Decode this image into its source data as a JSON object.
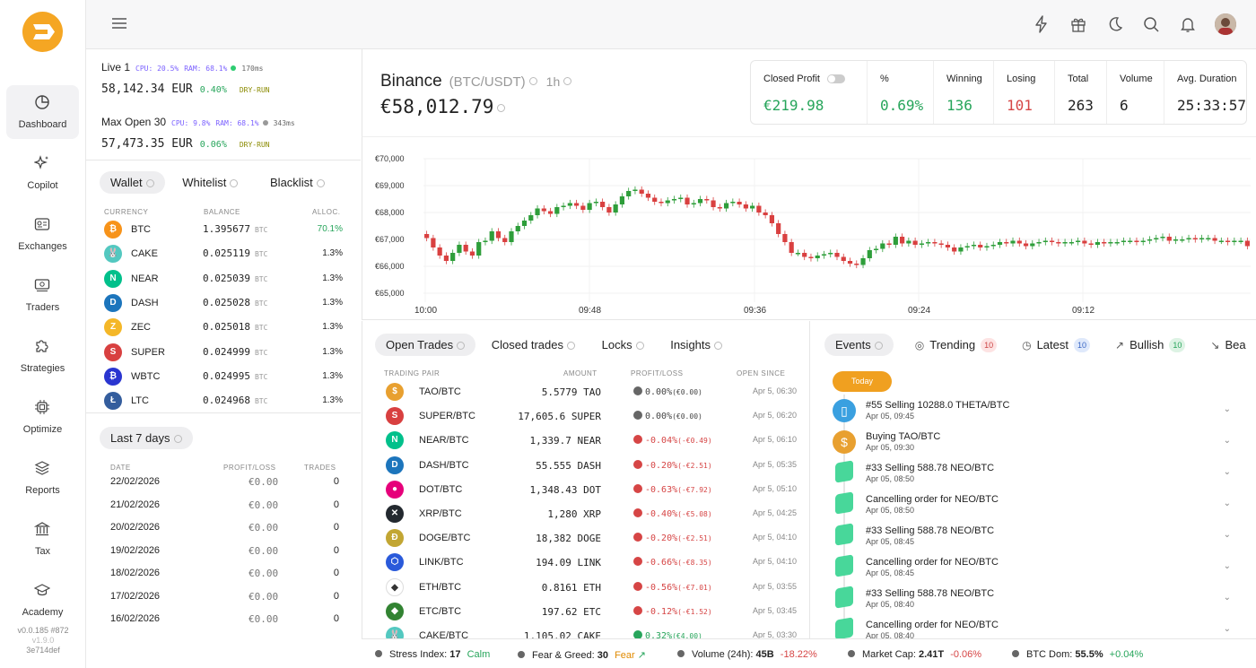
{
  "nav": {
    "items": [
      {
        "label": "Dashboard",
        "icon": "pie-chart-icon"
      },
      {
        "label": "Copilot",
        "icon": "sparkles-icon"
      },
      {
        "label": "Exchanges",
        "icon": "exchange-card-icon"
      },
      {
        "label": "Traders",
        "icon": "cash-icon"
      },
      {
        "label": "Strategies",
        "icon": "puzzle-icon"
      },
      {
        "label": "Optimize",
        "icon": "chip-icon"
      },
      {
        "label": "Reports",
        "icon": "layers-icon"
      },
      {
        "label": "Tax",
        "icon": "bank-icon"
      },
      {
        "label": "Academy",
        "icon": "graduation-cap-icon"
      }
    ],
    "version": "v0.0.185 #872",
    "version2": "v1.9.0",
    "hash": "3e714def"
  },
  "bots": [
    {
      "name": "Live 1",
      "cpu": "CPU: 20.5%",
      "ram": "RAM: 68.1%",
      "latency": "170ms",
      "value": "58,142.34 EUR",
      "pct": "0.40%",
      "mode": "DRY-RUN",
      "dot": "#2ecc71"
    },
    {
      "name": "Max Open 30",
      "cpu": "CPU: 9.8%",
      "ram": "RAM: 68.1%",
      "latency": "343ms",
      "value": "57,473.35 EUR",
      "pct": "0.06%",
      "mode": "DRY-RUN",
      "dot": "#999999"
    }
  ],
  "wallet": {
    "tabs": [
      "Wallet",
      "Whitelist",
      "Blacklist"
    ],
    "headers": {
      "currency": "CURRENCY",
      "balance": "BALANCE",
      "alloc": "ALLOC."
    },
    "rows": [
      {
        "sym": "BTC",
        "bal": "1.395677",
        "unit": "BTC",
        "alloc": "70.1%",
        "color": "#f7931a",
        "glyph": "₿"
      },
      {
        "sym": "CAKE",
        "bal": "0.025119",
        "unit": "BTC",
        "alloc": "1.3%",
        "color": "#53c8c0",
        "glyph": "🐰"
      },
      {
        "sym": "NEAR",
        "bal": "0.025039",
        "unit": "BTC",
        "alloc": "1.3%",
        "color": "#00c08b",
        "glyph": "N"
      },
      {
        "sym": "DASH",
        "bal": "0.025028",
        "unit": "BTC",
        "alloc": "1.3%",
        "color": "#1c75bc",
        "glyph": "D"
      },
      {
        "sym": "ZEC",
        "bal": "0.025018",
        "unit": "BTC",
        "alloc": "1.3%",
        "color": "#f4b728",
        "glyph": "Z"
      },
      {
        "sym": "SUPER",
        "bal": "0.024999",
        "unit": "BTC",
        "alloc": "1.3%",
        "color": "#d84040",
        "glyph": "S"
      },
      {
        "sym": "WBTC",
        "bal": "0.024995",
        "unit": "BTC",
        "alloc": "1.3%",
        "color": "#2a35d0",
        "glyph": "₿"
      },
      {
        "sym": "LTC",
        "bal": "0.024968",
        "unit": "BTC",
        "alloc": "1.3%",
        "color": "#345d9d",
        "glyph": "Ł"
      }
    ]
  },
  "days": {
    "title": "Last 7 days",
    "headers": {
      "date": "DATE",
      "pl": "PROFIT/LOSS",
      "trades": "TRADES"
    },
    "rows": [
      {
        "date": "22/02/2026",
        "pl": "€0.00",
        "trades": "0"
      },
      {
        "date": "21/02/2026",
        "pl": "€0.00",
        "trades": "0"
      },
      {
        "date": "20/02/2026",
        "pl": "€0.00",
        "trades": "0"
      },
      {
        "date": "19/02/2026",
        "pl": "€0.00",
        "trades": "0"
      },
      {
        "date": "18/02/2026",
        "pl": "€0.00",
        "trades": "0"
      },
      {
        "date": "17/02/2026",
        "pl": "€0.00",
        "trades": "0"
      },
      {
        "date": "16/02/2026",
        "pl": "€0.00",
        "trades": "0"
      }
    ]
  },
  "header": {
    "exchange": "Binance",
    "pair": "(BTC/USDT)",
    "timeframe": "1h",
    "price": "€58,012.79"
  },
  "stats": [
    {
      "label": "Closed Profit",
      "value": "€219.98",
      "color": "#27a55b"
    },
    {
      "label": "%",
      "value": "0.69%",
      "color": "#27a55b"
    },
    {
      "label": "Winning",
      "value": "136",
      "color": "#27a55b"
    },
    {
      "label": "Losing",
      "value": "101",
      "color": "#d64545"
    },
    {
      "label": "Total",
      "value": "263",
      "color": "#222222"
    },
    {
      "label": "Volume",
      "value": "6",
      "color": "#222222"
    },
    {
      "label": "Avg. Duration",
      "value": "25:33:57",
      "color": "#222222"
    }
  ],
  "chart_data": {
    "type": "candlestick",
    "y_ticks": [
      "€70,000",
      "€69,000",
      "€68,000",
      "€67,000",
      "€66,000",
      "€65,000"
    ],
    "ylim": [
      65000,
      70000
    ],
    "x_ticks": [
      "10:00",
      "09:48",
      "09:36",
      "09:24",
      "09:12"
    ],
    "up_color": "#2e9e3a",
    "down_color": "#d94040",
    "close": [
      67050,
      66700,
      66400,
      66200,
      66500,
      66800,
      66550,
      66400,
      66900,
      66950,
      67300,
      67050,
      66900,
      67300,
      67500,
      67700,
      67900,
      68150,
      68050,
      67950,
      68200,
      68250,
      68350,
      68250,
      68100,
      68350,
      68400,
      68200,
      68000,
      68300,
      68600,
      68800,
      68850,
      68700,
      68550,
      68400,
      68350,
      68450,
      68500,
      68550,
      68300,
      68350,
      68500,
      68450,
      68200,
      68150,
      68350,
      68400,
      68300,
      68150,
      68250,
      68000,
      67900,
      67600,
      67200,
      66900,
      66500,
      66500,
      66350,
      66300,
      66400,
      66450,
      66500,
      66350,
      66200,
      66100,
      66050,
      66300,
      66600,
      66650,
      66850,
      66800,
      67100,
      66850,
      66950,
      66800,
      66850,
      66900,
      66850,
      66800,
      66700,
      66550,
      66700,
      66750,
      66800,
      66700,
      66750,
      66800,
      66900,
      66850,
      66950,
      66850,
      66750,
      66850,
      66900,
      66950,
      66900,
      66850,
      66900,
      66900,
      66950,
      66850,
      66800,
      66900,
      66850,
      66900,
      66900,
      66950,
      66950,
      66900,
      66950,
      67000,
      67050,
      67100,
      66950,
      67000,
      67000,
      67050,
      67000,
      67050,
      67050,
      66950,
      66950,
      66900,
      66950,
      66950,
      66750
    ]
  },
  "trades": {
    "tabs": [
      "Open Trades",
      "Closed trades",
      "Locks",
      "Insights"
    ],
    "headers": {
      "pair": "TRADING PAIR",
      "amount": "AMOUNT",
      "pl": "PROFIT/LOSS",
      "since": "OPEN SINCE"
    },
    "rows": [
      {
        "pair": "TAO/BTC",
        "amt": "5.5779 TAO",
        "pl": "0.00%",
        "plsub": "(€0.00)",
        "since": "Apr 5, 06:30",
        "color": "#e8a030",
        "glyph": "$",
        "neg": false
      },
      {
        "pair": "SUPER/BTC",
        "amt": "17,605.6 SUPER",
        "pl": "0.00%",
        "plsub": "(€0.00)",
        "since": "Apr 5, 06:20",
        "color": "#d84040",
        "glyph": "S",
        "neg": false
      },
      {
        "pair": "NEAR/BTC",
        "amt": "1,339.7 NEAR",
        "pl": "-0.04%",
        "plsub": "(-€0.49)",
        "since": "Apr 5, 06:10",
        "color": "#00c08b",
        "glyph": "N",
        "neg": true
      },
      {
        "pair": "DASH/BTC",
        "amt": "55.555 DASH",
        "pl": "-0.20%",
        "plsub": "(-€2.51)",
        "since": "Apr 5, 05:35",
        "color": "#1c75bc",
        "glyph": "D",
        "neg": true
      },
      {
        "pair": "DOT/BTC",
        "amt": "1,348.43 DOT",
        "pl": "-0.63%",
        "plsub": "(-€7.92)",
        "since": "Apr 5, 05:10",
        "color": "#e6007a",
        "glyph": "●",
        "neg": true
      },
      {
        "pair": "XRP/BTC",
        "amt": "1,280 XRP",
        "pl": "-0.40%",
        "plsub": "(-€5.08)",
        "since": "Apr 5, 04:25",
        "color": "#23292f",
        "glyph": "✕",
        "neg": true
      },
      {
        "pair": "DOGE/BTC",
        "amt": "18,382 DOGE",
        "pl": "-0.20%",
        "plsub": "(-€2.51)",
        "since": "Apr 5, 04:10",
        "color": "#c2a633",
        "glyph": "Ð",
        "neg": true
      },
      {
        "pair": "LINK/BTC",
        "amt": "194.09 LINK",
        "pl": "-0.66%",
        "plsub": "(-€8.35)",
        "since": "Apr 5, 04:10",
        "color": "#2a5ada",
        "glyph": "⬡",
        "neg": true
      },
      {
        "pair": "ETH/BTC",
        "amt": "0.8161 ETH",
        "pl": "-0.56%",
        "plsub": "(-€7.01)",
        "since": "Apr 5, 03:55",
        "color": "#ffffff",
        "glyph": "◆",
        "neg": true
      },
      {
        "pair": "ETC/BTC",
        "amt": "197.62 ETC",
        "pl": "-0.12%",
        "plsub": "(-€1.52)",
        "since": "Apr 5, 03:45",
        "color": "#328332",
        "glyph": "◆",
        "neg": true
      },
      {
        "pair": "CAKE/BTC",
        "amt": "1,105.02 CAKE",
        "pl": "0.32%",
        "plsub": "(€4.00)",
        "since": "Apr 5, 03:30",
        "color": "#53c8c0",
        "glyph": "🐰",
        "neg": false
      }
    ]
  },
  "events": {
    "tabs": [
      {
        "label": "Events",
        "badge": ""
      },
      {
        "label": "Trending",
        "badge": "10"
      },
      {
        "label": "Latest",
        "badge": "10"
      },
      {
        "label": "Bullish",
        "badge": "10"
      },
      {
        "label": "Bea",
        "badge": ""
      }
    ],
    "today": "Today",
    "rows": [
      {
        "title": "#55 Selling 10288.0 THETA/BTC",
        "date": "Apr 05, 09:45",
        "color": "#3aa0e0"
      },
      {
        "title": "Buying TAO/BTC",
        "date": "Apr 05, 09:30",
        "color": "#e8a030"
      },
      {
        "title": "#33 Selling 588.78 NEO/BTC",
        "date": "Apr 05, 08:50",
        "color": "#48d79a"
      },
      {
        "title": "Cancelling order for NEO/BTC",
        "date": "Apr 05, 08:50",
        "color": "#48d79a"
      },
      {
        "title": "#33 Selling 588.78 NEO/BTC",
        "date": "Apr 05, 08:45",
        "color": "#48d79a"
      },
      {
        "title": "Cancelling order for NEO/BTC",
        "date": "Apr 05, 08:45",
        "color": "#48d79a"
      },
      {
        "title": "#33 Selling 588.78 NEO/BTC",
        "date": "Apr 05, 08:40",
        "color": "#48d79a"
      },
      {
        "title": "Cancelling order for NEO/BTC",
        "date": "Apr 05, 08:40",
        "color": "#48d79a"
      }
    ]
  },
  "status": {
    "stress_label": "Stress Index:",
    "stress_val": "17",
    "stress_state": "Calm",
    "fg_label": "Fear & Greed:",
    "fg_val": "30",
    "fg_state": "Fear",
    "vol_label": "Volume (24h):",
    "vol_val": "45B",
    "vol_chg": "-18.22%",
    "cap_label": "Market Cap:",
    "cap_val": "2.41T",
    "cap_chg": "-0.06%",
    "dom_label": "BTC Dom:",
    "dom_val": "55.5%",
    "dom_chg": "+0.04%"
  }
}
